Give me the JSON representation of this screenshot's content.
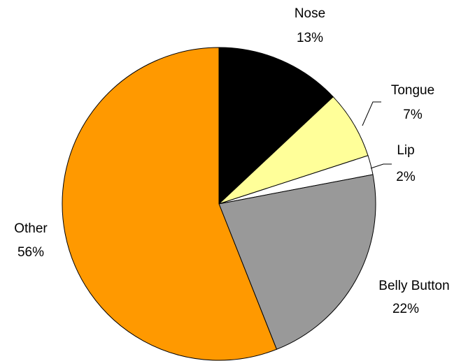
{
  "chart_data": {
    "type": "pie",
    "categories": [
      "Nose",
      "Tongue",
      "Lip",
      "Belly Button",
      "Other"
    ],
    "values": [
      13,
      7,
      2,
      22,
      56
    ],
    "value_labels": [
      "13%",
      "7%",
      "2%",
      "22%",
      "56%"
    ],
    "colors": [
      "#000000",
      "#ffff99",
      "#ffffff",
      "#999999",
      "#ff9900"
    ]
  }
}
